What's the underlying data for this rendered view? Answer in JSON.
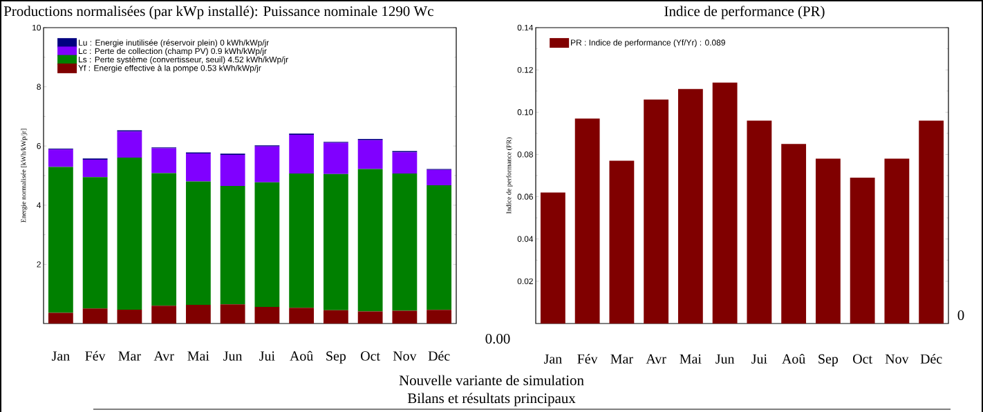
{
  "chart_data": [
    {
      "type": "bar",
      "title": "Productions normalisées  (par kWp installé):  Puissance nominale 1290 Wc",
      "ylabel": "Energie normalisée [kWh/kWp/jr]",
      "stacked": true,
      "legend": "top left",
      "categories": [
        "Jan",
        "Fév",
        "Mar",
        "Avr",
        "Mai",
        "Jun",
        "Jui",
        "Aoû",
        "Sep",
        "Oct",
        "Nov",
        "Déc"
      ],
      "ylim": [
        0,
        10
      ],
      "yticks": [
        2,
        4,
        6,
        8,
        10
      ],
      "series": [
        {
          "name": "Yf : Energie effective à la pompe  0.53 kWh/kWp/jr",
          "color": "#800000",
          "values": [
            0.36,
            0.51,
            0.47,
            0.6,
            0.63,
            0.65,
            0.56,
            0.53,
            0.45,
            0.41,
            0.43,
            0.46
          ]
        },
        {
          "name": "Ls : Perte système (convertisseur, seuil)  4.52 kWh/kWp/jr",
          "color": "#008000",
          "values": [
            4.93,
            4.44,
            5.14,
            4.48,
            4.17,
            4.0,
            4.21,
            4.54,
            4.6,
            4.81,
            4.64,
            4.21
          ]
        },
        {
          "name": "Lc : Perte de collection (champ PV)  0.9 kWh/kWp/jr",
          "color": "#8000ff",
          "values": [
            0.59,
            0.59,
            0.88,
            0.84,
            0.95,
            1.05,
            1.22,
            1.31,
            1.06,
            0.98,
            0.72,
            0.52
          ]
        },
        {
          "name": "Lu : Energie inutilisée (réservoir plein)  0 kWh/kWp/jr",
          "color": "#000080",
          "values": [
            0.03,
            0.04,
            0.04,
            0.03,
            0.03,
            0.04,
            0.03,
            0.04,
            0.03,
            0.04,
            0.04,
            0.03
          ]
        }
      ],
      "annotations": [
        "0.00",
        "Nouvelle variante de simulation",
        "Bilans et résultats principaux"
      ]
    },
    {
      "type": "bar",
      "title": "Indice de performance (PR)",
      "ylabel": "Indice de performance (PR)",
      "legend": "top left",
      "categories": [
        "Jan",
        "Fév",
        "Mar",
        "Avr",
        "Mai",
        "Jun",
        "Jui",
        "Aoû",
        "Sep",
        "Oct",
        "Nov",
        "Déc"
      ],
      "ylim": [
        0,
        0.14
      ],
      "yticks": [
        0.02,
        0.04,
        0.06,
        0.08,
        {
          "value": 0.1,
          "label": "0.10"
        },
        0.12,
        0.14
      ],
      "series": [
        {
          "name": "PR : Indice de performance  (Yf/Yr) :  0.089",
          "color": "#800000",
          "values": [
            0.062,
            0.097,
            0.077,
            0.106,
            0.111,
            0.114,
            0.096,
            0.085,
            0.078,
            0.069,
            0.078,
            0.096
          ]
        }
      ],
      "annotations": [
        "0"
      ]
    }
  ]
}
